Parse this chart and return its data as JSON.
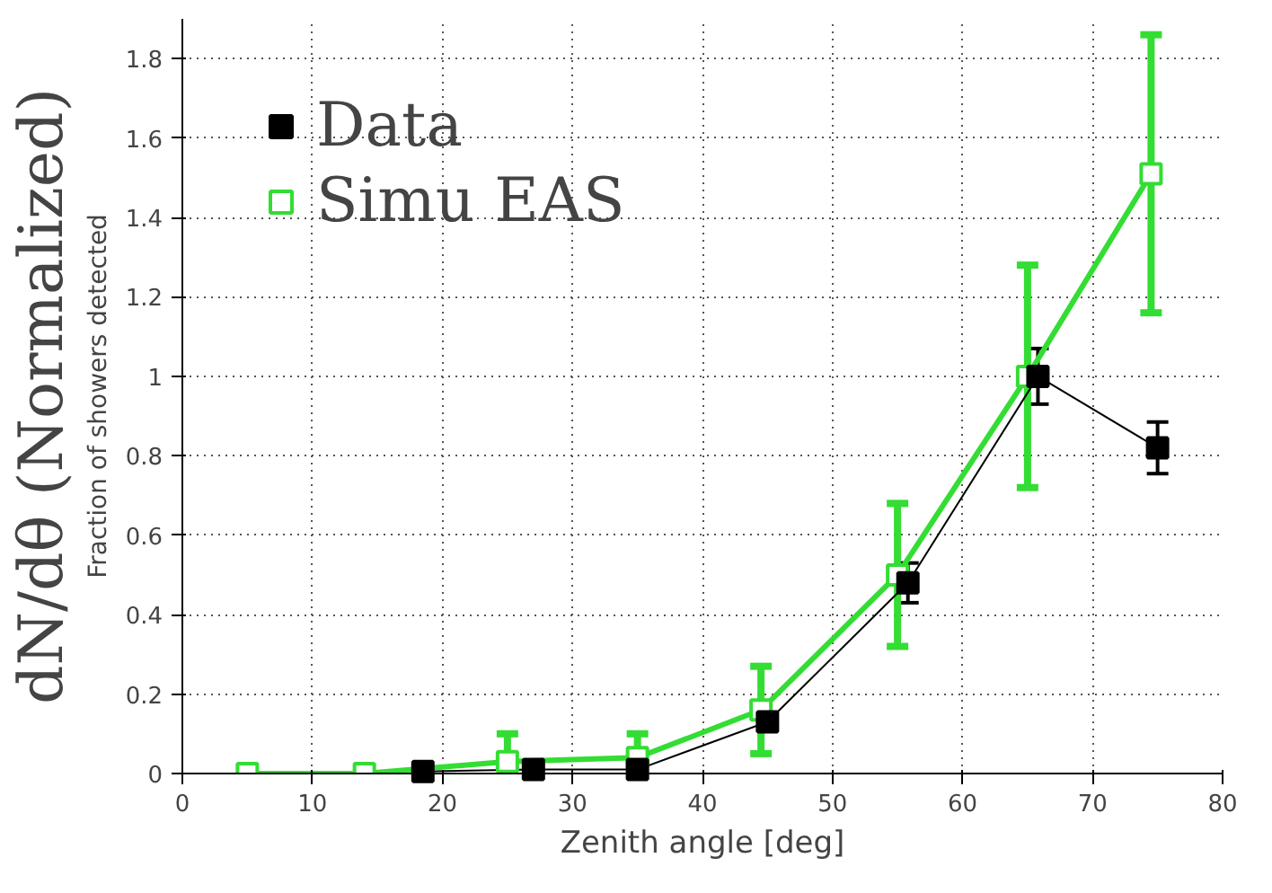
{
  "chart_data": {
    "type": "line",
    "xlabel": "Zenith angle [deg]",
    "ylabel": "dN/dθ (Normalized)",
    "annotations": [
      "Fraction of showers detected"
    ],
    "xlim": [
      0,
      80
    ],
    "ylim": [
      0,
      1.9
    ],
    "xticks": [
      0,
      10,
      20,
      30,
      40,
      50,
      60,
      70,
      80
    ],
    "yticks": [
      0,
      0.2,
      0.4,
      0.6,
      0.8,
      1,
      1.2,
      1.4,
      1.6,
      1.8
    ],
    "grid": true,
    "legend": "top left",
    "marker": "square",
    "line_style": "solid",
    "series": [
      {
        "name": "Data",
        "color": "#000000",
        "x": [
          18.5,
          27,
          35,
          45,
          55.8,
          65.8,
          75
        ],
        "values": [
          0.005,
          0.01,
          0.01,
          0.13,
          0.48,
          1.0,
          0.82
        ],
        "errors": [
          null,
          null,
          null,
          null,
          0.05,
          0.07,
          0.065
        ]
      },
      {
        "name": "Simu EAS",
        "color": "#33dd33",
        "x": [
          5,
          14,
          25,
          35,
          44.5,
          55,
          65,
          74.5
        ],
        "values": [
          0,
          0,
          0.03,
          0.04,
          0.16,
          0.5,
          1.0,
          1.51
        ],
        "errors": [
          null,
          null,
          0.07,
          0.06,
          0.11,
          0.18,
          0.28,
          0.35
        ]
      }
    ]
  }
}
